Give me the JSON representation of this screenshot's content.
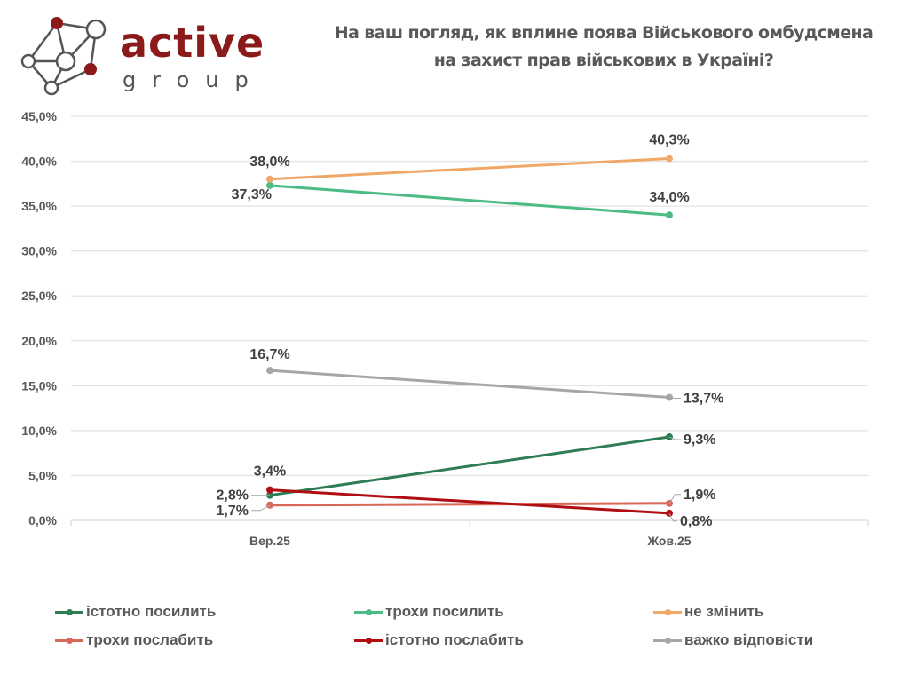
{
  "logo": {
    "brand_word": "active",
    "brand_sub": "group",
    "brand_color": "#8B1A1A",
    "icon": "network-nodes-icon"
  },
  "title": {
    "line1": "На ваш погляд, як вплине поява Військового омбудсмена",
    "line2": "на захист прав військових в Україні?"
  },
  "chart_data": {
    "type": "line",
    "title": "На ваш погляд, як вплине поява Військового омбудсмена на захист прав військових в Україні?",
    "xlabel": "",
    "ylabel": "",
    "x": [
      "Вер.25",
      "Жов.25"
    ],
    "ylim": [
      0,
      45
    ],
    "yticks": [
      0,
      5,
      10,
      15,
      20,
      25,
      30,
      35,
      40,
      45
    ],
    "ytick_labels": [
      "0,0%",
      "5,0%",
      "10,0%",
      "15,0%",
      "20,0%",
      "25,0%",
      "30,0%",
      "35,0%",
      "40,0%",
      "45,0%"
    ],
    "grid": true,
    "legend_position": "bottom",
    "series": [
      {
        "name": "істотно посилить",
        "color": "#2E7D55",
        "values": [
          2.8,
          9.3
        ],
        "labels": [
          "2,8%",
          "9,3%"
        ]
      },
      {
        "name": "трохи посилить",
        "color": "#4CBB84",
        "values": [
          37.3,
          34.0
        ],
        "labels": [
          "37,3%",
          "34,0%"
        ]
      },
      {
        "name": "не змінить",
        "color": "#F0A868",
        "values": [
          38.0,
          40.3
        ],
        "labels": [
          "38,0%",
          "40,3%"
        ]
      },
      {
        "name": "трохи послабить",
        "color": "#D9685A",
        "values": [
          1.7,
          1.9
        ],
        "labels": [
          "1,7%",
          "1,9%"
        ]
      },
      {
        "name": "істотно послабить",
        "color": "#B00E12",
        "values": [
          3.4,
          0.8
        ],
        "labels": [
          "3,4%",
          "0,8%"
        ]
      },
      {
        "name": "важко відповісти",
        "color": "#A6A6A6",
        "values": [
          16.7,
          13.7
        ],
        "labels": [
          "16,7%",
          "13,7%"
        ]
      }
    ]
  }
}
